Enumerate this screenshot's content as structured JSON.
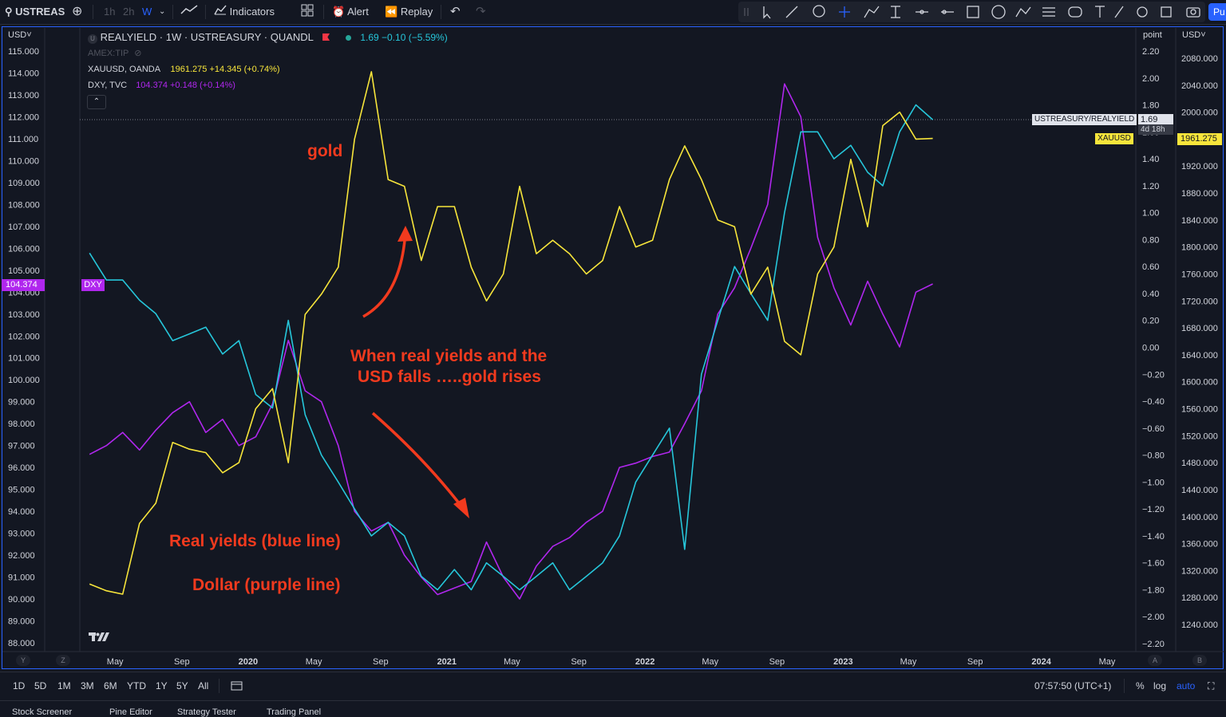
{
  "toolbar": {
    "symbol": "USTREAS",
    "intervals": [
      "1h",
      "2h",
      "W"
    ],
    "indicators_label": "Indicators",
    "alert_label": "Alert",
    "replay_label": "Replay",
    "publish_label": "Pu"
  },
  "legend": {
    "main_title": "REALYIELD · 1W · USTREASURY · QUANDL",
    "main_values": "1.69 −0.10 (−5.59%)",
    "hidden_series": "AMEX:TIP",
    "gold_name": "XAUUSD, OANDA",
    "gold_values": "1961.275 +14.345 (+0.74%)",
    "dxy_name": "DXY, TVC",
    "dxy_values": "104.374 +0.148 (+0.14%)"
  },
  "axes": {
    "left_currency": "USD",
    "mid_unit": "point",
    "right_currency": "USD",
    "dxy_badge": "DXY",
    "dxy_price_tag": "104.374",
    "realyield_tag": "USTREASURY/REALYIELD",
    "realyield_value": "1.69",
    "countdown": "4d 18h",
    "xau_tag": "XAUUSD",
    "xau_price_tag": "1961.275",
    "scale_a": "A",
    "scale_b": "B",
    "scale_y": "Y",
    "scale_z": "Z"
  },
  "annotations": {
    "gold": "gold",
    "relationship_line1": "When real yields and the",
    "relationship_line2": "USD falls …..gold rises",
    "realyields": "Real yields (blue line)",
    "dollar": "Dollar (purple line)"
  },
  "bottom": {
    "ranges": [
      "1D",
      "5D",
      "1M",
      "3M",
      "6M",
      "YTD",
      "1Y",
      "5Y",
      "All"
    ],
    "time": "07:57:50 (UTC+1)",
    "percent": "%",
    "log": "log",
    "auto": "auto"
  },
  "tabs": [
    "Stock Screener",
    "Pine Editor",
    "Strategy Tester",
    "Trading Panel"
  ],
  "colors": {
    "gold": "#f7e53b",
    "realyield": "#26c6da",
    "dxy": "#b027ee",
    "annotation": "#f23a1e",
    "accent": "#2962ff"
  },
  "chart_data": {
    "type": "line",
    "x_ticks": [
      "May",
      "Sep",
      "2020",
      "May",
      "Sep",
      "2021",
      "May",
      "Sep",
      "2022",
      "May",
      "Sep",
      "2023",
      "May",
      "Sep",
      "2024",
      "May"
    ],
    "left_axis_ticks": [
      "115.000",
      "114.000",
      "113.000",
      "112.000",
      "111.000",
      "110.000",
      "109.000",
      "108.000",
      "107.000",
      "106.000",
      "105.000",
      "104.000",
      "103.000",
      "102.000",
      "101.000",
      "100.000",
      "99.000",
      "98.000",
      "97.000",
      "96.000",
      "95.000",
      "94.000",
      "93.000",
      "92.000",
      "91.000",
      "90.000",
      "89.000",
      "88.000"
    ],
    "mid_axis_ticks": [
      "2.20",
      "2.00",
      "1.80",
      "1.60",
      "1.40",
      "1.20",
      "1.00",
      "0.80",
      "0.60",
      "0.40",
      "0.20",
      "0.00",
      "−0.20",
      "−0.40",
      "−0.60",
      "−0.80",
      "−1.00",
      "−1.20",
      "−1.40",
      "−1.60",
      "−1.80",
      "−2.00",
      "−2.20"
    ],
    "right_axis_ticks": [
      "2080.000",
      "2040.000",
      "2000.000",
      "1960.000",
      "1920.000",
      "1880.000",
      "1840.000",
      "1800.000",
      "1760.000",
      "1720.000",
      "1680.000",
      "1640.000",
      "1600.000",
      "1560.000",
      "1520.000",
      "1480.000",
      "1440.000",
      "1400.000",
      "1360.000",
      "1320.000",
      "1280.000",
      "1240.000"
    ],
    "left_ylim": [
      88,
      115
    ],
    "mid_ylim": [
      -2.2,
      2.2
    ],
    "right_ylim": [
      1240,
      2080
    ],
    "series": [
      {
        "name": "XAUUSD",
        "axis": "right",
        "x": [
          "2019-03",
          "2019-04",
          "2019-05",
          "2019-06",
          "2019-07",
          "2019-08",
          "2019-09",
          "2019-10",
          "2019-11",
          "2019-12",
          "2020-01",
          "2020-02",
          "2020-03",
          "2020-04",
          "2020-05",
          "2020-06",
          "2020-07",
          "2020-08",
          "2020-09",
          "2020-10",
          "2020-11",
          "2020-12",
          "2021-01",
          "2021-02",
          "2021-03",
          "2021-04",
          "2021-05",
          "2021-06",
          "2021-07",
          "2021-08",
          "2021-09",
          "2021-10",
          "2021-11",
          "2021-12",
          "2022-01",
          "2022-02",
          "2022-03",
          "2022-04",
          "2022-05",
          "2022-06",
          "2022-07",
          "2022-08",
          "2022-09",
          "2022-10",
          "2022-11",
          "2022-12",
          "2023-01",
          "2023-02",
          "2023-03",
          "2023-04",
          "2023-05",
          "2023-06"
        ],
        "y": [
          1300,
          1290,
          1285,
          1390,
          1420,
          1510,
          1500,
          1495,
          1465,
          1480,
          1560,
          1590,
          1480,
          1700,
          1730,
          1770,
          1960,
          2060,
          1900,
          1890,
          1780,
          1860,
          1860,
          1770,
          1720,
          1760,
          1890,
          1790,
          1810,
          1790,
          1760,
          1780,
          1860,
          1800,
          1810,
          1900,
          1950,
          1900,
          1840,
          1830,
          1730,
          1770,
          1660,
          1640,
          1760,
          1800,
          1930,
          1830,
          1980,
          2000,
          1960,
          1961
        ]
      },
      {
        "name": "USTREASURY/REALYIELD",
        "axis": "mid",
        "x": [
          "2019-03",
          "2019-04",
          "2019-05",
          "2019-06",
          "2019-07",
          "2019-08",
          "2019-09",
          "2019-10",
          "2019-11",
          "2019-12",
          "2020-01",
          "2020-02",
          "2020-03",
          "2020-04",
          "2020-05",
          "2020-06",
          "2020-07",
          "2020-08",
          "2020-09",
          "2020-10",
          "2020-11",
          "2020-12",
          "2021-01",
          "2021-02",
          "2021-03",
          "2021-04",
          "2021-05",
          "2021-06",
          "2021-07",
          "2021-08",
          "2021-09",
          "2021-10",
          "2021-11",
          "2021-12",
          "2022-01",
          "2022-02",
          "2022-03",
          "2022-04",
          "2022-05",
          "2022-06",
          "2022-07",
          "2022-08",
          "2022-09",
          "2022-10",
          "2022-11",
          "2022-12",
          "2023-01",
          "2023-02",
          "2023-03",
          "2023-04",
          "2023-05",
          "2023-06"
        ],
        "y": [
          0.7,
          0.5,
          0.5,
          0.35,
          0.25,
          0.05,
          0.1,
          0.15,
          -0.05,
          0.05,
          -0.35,
          -0.45,
          0.2,
          -0.5,
          -0.8,
          -1.0,
          -1.2,
          -1.4,
          -1.3,
          -1.4,
          -1.7,
          -1.8,
          -1.65,
          -1.8,
          -1.6,
          -1.7,
          -1.8,
          -1.7,
          -1.6,
          -1.8,
          -1.7,
          -1.6,
          -1.4,
          -1.0,
          -0.8,
          -0.6,
          -1.5,
          -0.2,
          0.2,
          0.6,
          0.4,
          0.2,
          1.0,
          1.6,
          1.6,
          1.4,
          1.5,
          1.3,
          1.2,
          1.6,
          1.8,
          1.69
        ]
      },
      {
        "name": "DXY",
        "axis": "left",
        "x": [
          "2019-03",
          "2019-04",
          "2019-05",
          "2019-06",
          "2019-07",
          "2019-08",
          "2019-09",
          "2019-10",
          "2019-11",
          "2019-12",
          "2020-01",
          "2020-02",
          "2020-03",
          "2020-04",
          "2020-05",
          "2020-06",
          "2020-07",
          "2020-08",
          "2020-09",
          "2020-10",
          "2020-11",
          "2020-12",
          "2021-01",
          "2021-02",
          "2021-03",
          "2021-04",
          "2021-05",
          "2021-06",
          "2021-07",
          "2021-08",
          "2021-09",
          "2021-10",
          "2021-11",
          "2021-12",
          "2022-01",
          "2022-02",
          "2022-03",
          "2022-04",
          "2022-05",
          "2022-06",
          "2022-07",
          "2022-08",
          "2022-09",
          "2022-10",
          "2022-11",
          "2022-12",
          "2023-01",
          "2023-02",
          "2023-03",
          "2023-04",
          "2023-05",
          "2023-06"
        ],
        "y": [
          96.6,
          97.0,
          97.6,
          96.8,
          97.7,
          98.5,
          99.0,
          97.6,
          98.2,
          97.0,
          97.4,
          98.9,
          101.8,
          99.5,
          99.0,
          97.0,
          94.0,
          93.1,
          93.5,
          92.0,
          91.0,
          90.2,
          90.5,
          90.8,
          92.6,
          91.0,
          90.0,
          91.5,
          92.4,
          92.8,
          93.5,
          94.0,
          96.0,
          96.2,
          96.5,
          96.7,
          98.0,
          99.5,
          103.0,
          104.2,
          106.0,
          108.0,
          113.5,
          112.0,
          106.5,
          104.2,
          102.5,
          104.5,
          103.0,
          101.5,
          104.0,
          104.374
        ]
      }
    ]
  }
}
